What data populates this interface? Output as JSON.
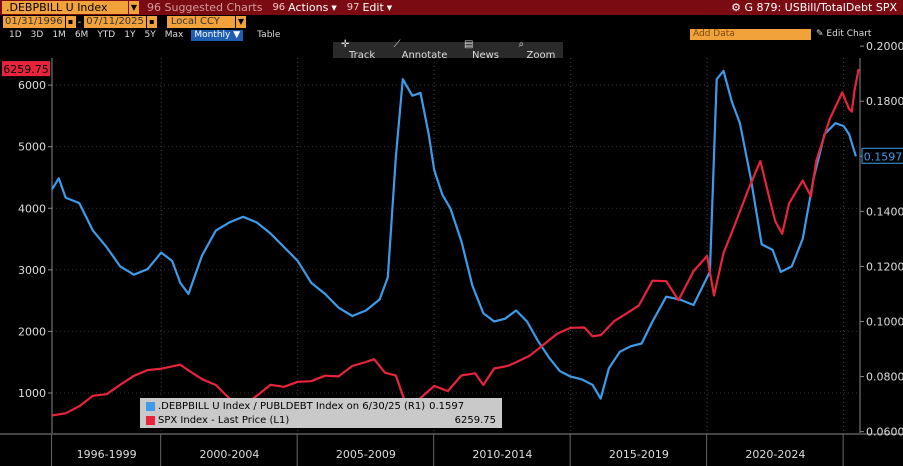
{
  "toolbar": {
    "ticker": ".DEBPBILL U Index",
    "suggested": "Suggested Charts",
    "suggested_num": "96",
    "actions": "Actions",
    "actions_num": "96",
    "edit": "Edit",
    "edit_num": "97",
    "graph_title": "G 879: USBill/TotalDebt SPX",
    "start_date": "01/31/1996",
    "end_date": "07/11/2025",
    "currency": "Local CCY",
    "periods": [
      "1D",
      "3D",
      "1M",
      "6M",
      "YTD",
      "1Y",
      "5Y",
      "Max"
    ],
    "frequency": "Monthly",
    "table": "Table",
    "add_data": "Add Data",
    "edit_chart": "Edit Chart"
  },
  "chart_tools": {
    "track": "Track",
    "annotate": "Annotate",
    "news": "News",
    "zoom": "Zoom"
  },
  "colors": {
    "spx": "#e8243c",
    "ratio": "#3d9be9",
    "toolbar": "#7a0b12",
    "accent": "#f2a23a"
  },
  "chart_data": {
    "type": "line",
    "x_tick_labels": [
      "1996-1999",
      "2000-2004",
      "2005-2009",
      "2010-2014",
      "2015-2019",
      "2020-2024"
    ],
    "x_range": [
      1996.0,
      2025.6
    ],
    "left_axis": {
      "ticks": [
        1000,
        2000,
        3000,
        4000,
        5000,
        6000
      ],
      "range": [
        350,
        6700
      ],
      "last_value_label": "6259.75"
    },
    "right_axis": {
      "ticks": [
        "0.0600",
        "0.0800",
        "0.1000",
        "0.1200",
        "0.1400",
        "0.1600",
        "0.1800",
        "0.2000"
      ],
      "range": [
        0.0595,
        0.2015
      ],
      "last_value_label": "0.1597"
    },
    "series": [
      {
        "name": ".DEBPBILL U Index / PUBLDEBT Index on 6/30/25 (R1)",
        "last_value": "0.1597",
        "axis": "right",
        "points": [
          [
            1996.0,
            0.148
          ],
          [
            1996.25,
            0.152
          ],
          [
            1996.5,
            0.145
          ],
          [
            1997.0,
            0.143
          ],
          [
            1997.5,
            0.133
          ],
          [
            1998.0,
            0.127
          ],
          [
            1998.5,
            0.12
          ],
          [
            1999.0,
            0.117
          ],
          [
            1999.5,
            0.119
          ],
          [
            2000.0,
            0.125
          ],
          [
            2000.4,
            0.122
          ],
          [
            2000.7,
            0.114
          ],
          [
            2001.0,
            0.11
          ],
          [
            2001.5,
            0.124
          ],
          [
            2002.0,
            0.133
          ],
          [
            2002.5,
            0.136
          ],
          [
            2003.0,
            0.138
          ],
          [
            2003.5,
            0.136
          ],
          [
            2004.0,
            0.132
          ],
          [
            2004.5,
            0.127
          ],
          [
            2005.0,
            0.122
          ],
          [
            2005.5,
            0.114
          ],
          [
            2006.0,
            0.11
          ],
          [
            2006.5,
            0.105
          ],
          [
            2007.0,
            0.102
          ],
          [
            2007.5,
            0.104
          ],
          [
            2008.0,
            0.108
          ],
          [
            2008.3,
            0.116
          ],
          [
            2008.6,
            0.16
          ],
          [
            2008.85,
            0.188
          ],
          [
            2009.2,
            0.182
          ],
          [
            2009.5,
            0.183
          ],
          [
            2009.8,
            0.168
          ],
          [
            2010.0,
            0.155
          ],
          [
            2010.3,
            0.146
          ],
          [
            2010.6,
            0.141
          ],
          [
            2011.0,
            0.129
          ],
          [
            2011.4,
            0.113
          ],
          [
            2011.8,
            0.103
          ],
          [
            2012.2,
            0.1
          ],
          [
            2012.6,
            0.101
          ],
          [
            2013.0,
            0.104
          ],
          [
            2013.4,
            0.1
          ],
          [
            2013.8,
            0.093
          ],
          [
            2014.2,
            0.087
          ],
          [
            2014.6,
            0.082
          ],
          [
            2015.0,
            0.08
          ],
          [
            2015.4,
            0.079
          ],
          [
            2015.8,
            0.077
          ],
          [
            2016.1,
            0.072
          ],
          [
            2016.4,
            0.083
          ],
          [
            2016.8,
            0.089
          ],
          [
            2017.2,
            0.091
          ],
          [
            2017.6,
            0.092
          ],
          [
            2018.0,
            0.1
          ],
          [
            2018.5,
            0.109
          ],
          [
            2019.0,
            0.108
          ],
          [
            2019.5,
            0.106
          ],
          [
            2019.9,
            0.114
          ],
          [
            2020.1,
            0.118
          ],
          [
            2020.35,
            0.188
          ],
          [
            2020.6,
            0.191
          ],
          [
            2020.9,
            0.18
          ],
          [
            2021.2,
            0.172
          ],
          [
            2021.6,
            0.152
          ],
          [
            2022.0,
            0.128
          ],
          [
            2022.4,
            0.126
          ],
          [
            2022.7,
            0.118
          ],
          [
            2023.1,
            0.12
          ],
          [
            2023.5,
            0.13
          ],
          [
            2023.9,
            0.152
          ],
          [
            2024.3,
            0.168
          ],
          [
            2024.7,
            0.172
          ],
          [
            2025.0,
            0.171
          ],
          [
            2025.2,
            0.168
          ],
          [
            2025.45,
            0.16
          ]
        ]
      },
      {
        "name": "SPX Index - Last Price (L1)",
        "last_value": "6259.75",
        "axis": "left",
        "points": [
          [
            1996.0,
            636
          ],
          [
            1996.5,
            670
          ],
          [
            1997.0,
            786
          ],
          [
            1997.5,
            954
          ],
          [
            1998.0,
            980
          ],
          [
            1998.5,
            1133
          ],
          [
            1999.0,
            1279
          ],
          [
            1999.5,
            1372
          ],
          [
            2000.0,
            1394
          ],
          [
            2000.7,
            1460
          ],
          [
            2001.0,
            1366
          ],
          [
            2001.5,
            1224
          ],
          [
            2002.0,
            1130
          ],
          [
            2002.5,
            911
          ],
          [
            2002.8,
            815
          ],
          [
            2003.2,
            848
          ],
          [
            2003.6,
            990
          ],
          [
            2004.0,
            1131
          ],
          [
            2004.5,
            1101
          ],
          [
            2005.0,
            1181
          ],
          [
            2005.5,
            1191
          ],
          [
            2006.0,
            1280
          ],
          [
            2006.5,
            1270
          ],
          [
            2007.0,
            1438
          ],
          [
            2007.5,
            1503
          ],
          [
            2007.8,
            1549
          ],
          [
            2008.2,
            1330
          ],
          [
            2008.6,
            1282
          ],
          [
            2008.9,
            900
          ],
          [
            2009.2,
            735
          ],
          [
            2009.5,
            919
          ],
          [
            2010.0,
            1115
          ],
          [
            2010.5,
            1030
          ],
          [
            2011.0,
            1286
          ],
          [
            2011.5,
            1320
          ],
          [
            2011.8,
            1130
          ],
          [
            2012.2,
            1397
          ],
          [
            2012.7,
            1440
          ],
          [
            2013.0,
            1498
          ],
          [
            2013.5,
            1606
          ],
          [
            2014.0,
            1782
          ],
          [
            2014.5,
            1960
          ],
          [
            2015.0,
            2058
          ],
          [
            2015.5,
            2063
          ],
          [
            2015.8,
            1920
          ],
          [
            2016.1,
            1940
          ],
          [
            2016.6,
            2168
          ],
          [
            2017.0,
            2278
          ],
          [
            2017.5,
            2423
          ],
          [
            2018.0,
            2823
          ],
          [
            2018.5,
            2816
          ],
          [
            2018.95,
            2506
          ],
          [
            2019.5,
            2980
          ],
          [
            2020.0,
            3225
          ],
          [
            2020.25,
            2585
          ],
          [
            2020.6,
            3271
          ],
          [
            2021.0,
            3714
          ],
          [
            2021.5,
            4297
          ],
          [
            2021.95,
            4766
          ],
          [
            2022.3,
            4131
          ],
          [
            2022.5,
            3785
          ],
          [
            2022.75,
            3585
          ],
          [
            2023.0,
            4076
          ],
          [
            2023.5,
            4450
          ],
          [
            2023.8,
            4194
          ],
          [
            2024.0,
            4770
          ],
          [
            2024.5,
            5460
          ],
          [
            2024.95,
            5882
          ],
          [
            2025.2,
            5612
          ],
          [
            2025.3,
            5570
          ],
          [
            2025.4,
            5912
          ],
          [
            2025.55,
            6259.75
          ]
        ]
      }
    ]
  }
}
